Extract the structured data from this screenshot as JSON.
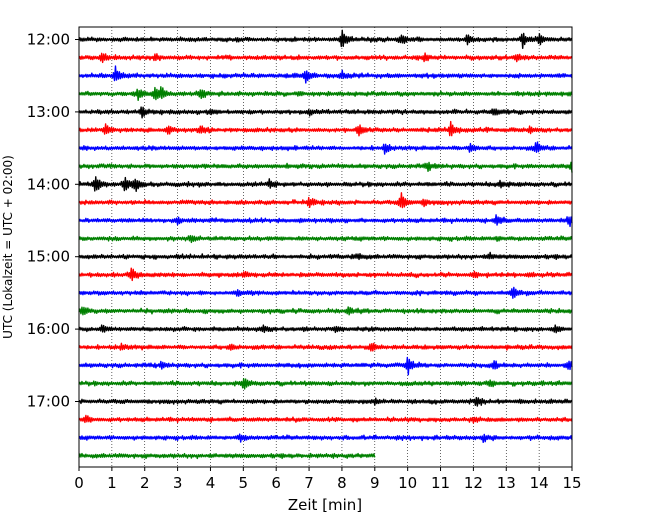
{
  "chart_data": {
    "type": "line",
    "xlabel": "Zeit  [min]",
    "ylabel": "UTC (Lokalzeit = UTC + 02:00)",
    "xlim": [
      0,
      15
    ],
    "x_ticks": [
      0,
      1,
      2,
      3,
      4,
      5,
      6,
      7,
      8,
      9,
      10,
      11,
      12,
      13,
      14,
      15
    ],
    "x_tick_labels": [
      "0",
      "1",
      "2",
      "3",
      "4",
      "5",
      "6",
      "7",
      "8",
      "9",
      "10",
      "11",
      "12",
      "13",
      "14",
      "15"
    ],
    "y_tick_labels": [
      "12:00",
      "13:00",
      "14:00",
      "15:00",
      "16:00",
      "17:00"
    ],
    "row_minutes": 15,
    "start_time": "12:00",
    "vertical_grid": "dotted",
    "trace_colors": [
      "#000000",
      "#ff0000",
      "#0000ff",
      "#008000"
    ],
    "traces": [
      {
        "start": "12:00",
        "duration_min": 15,
        "color": "black",
        "events": [
          [
            8.0,
            1.0
          ],
          [
            9.8,
            0.55
          ],
          [
            11.8,
            0.6
          ],
          [
            13.5,
            0.7
          ],
          [
            14.0,
            0.55
          ]
        ]
      },
      {
        "start": "12:15",
        "duration_min": 15,
        "color": "red",
        "events": [
          [
            0.7,
            0.65
          ],
          [
            2.3,
            0.35
          ],
          [
            10.5,
            0.4
          ],
          [
            13.3,
            0.45
          ]
        ]
      },
      {
        "start": "12:30",
        "duration_min": 15,
        "color": "blue",
        "events": [
          [
            1.1,
            1.0
          ],
          [
            6.9,
            0.8
          ],
          [
            8.0,
            0.4
          ]
        ]
      },
      {
        "start": "12:45",
        "duration_min": 15,
        "color": "green",
        "events": [
          [
            1.8,
            0.6
          ],
          [
            2.3,
            0.8
          ],
          [
            2.5,
            0.7
          ],
          [
            3.7,
            0.6
          ]
        ]
      },
      {
        "start": "13:00",
        "duration_min": 15,
        "color": "black",
        "events": [
          [
            1.9,
            0.6
          ],
          [
            4.0,
            0.3
          ],
          [
            7.0,
            0.3
          ],
          [
            12.6,
            0.35
          ]
        ]
      },
      {
        "start": "13:15",
        "duration_min": 15,
        "color": "red",
        "events": [
          [
            0.8,
            0.6
          ],
          [
            2.7,
            0.45
          ],
          [
            3.7,
            0.4
          ],
          [
            8.5,
            0.65
          ],
          [
            11.3,
            0.8
          ],
          [
            13.7,
            0.35
          ]
        ]
      },
      {
        "start": "13:30",
        "duration_min": 15,
        "color": "blue",
        "events": [
          [
            9.3,
            0.55
          ],
          [
            11.9,
            0.5
          ],
          [
            13.9,
            0.7
          ]
        ]
      },
      {
        "start": "13:45",
        "duration_min": 15,
        "color": "green",
        "events": [
          [
            10.6,
            0.45
          ],
          [
            15.0,
            0.8
          ]
        ]
      },
      {
        "start": "14:00",
        "duration_min": 15,
        "color": "black",
        "events": [
          [
            0.5,
            1.0
          ],
          [
            1.4,
            0.9
          ],
          [
            1.7,
            0.8
          ],
          [
            5.8,
            0.5
          ],
          [
            12.8,
            0.4
          ]
        ]
      },
      {
        "start": "14:15",
        "duration_min": 15,
        "color": "red",
        "events": [
          [
            7.0,
            0.55
          ],
          [
            9.8,
            1.0
          ],
          [
            10.5,
            0.4
          ]
        ]
      },
      {
        "start": "14:30",
        "duration_min": 15,
        "color": "blue",
        "events": [
          [
            3.0,
            0.35
          ],
          [
            12.7,
            0.65
          ],
          [
            14.9,
            0.55
          ]
        ]
      },
      {
        "start": "14:45",
        "duration_min": 15,
        "color": "green",
        "events": [
          [
            3.4,
            0.3
          ],
          [
            12.7,
            0.2
          ]
        ]
      },
      {
        "start": "15:00",
        "duration_min": 15,
        "color": "black",
        "events": [
          [
            8.5,
            0.3
          ],
          [
            12.5,
            0.3
          ]
        ]
      },
      {
        "start": "15:15",
        "duration_min": 15,
        "color": "red",
        "events": [
          [
            1.6,
            0.8
          ],
          [
            5.0,
            0.3
          ],
          [
            12.0,
            0.25
          ]
        ]
      },
      {
        "start": "15:30",
        "duration_min": 15,
        "color": "blue",
        "events": [
          [
            4.8,
            0.3
          ],
          [
            13.2,
            0.65
          ]
        ]
      },
      {
        "start": "15:45",
        "duration_min": 15,
        "color": "green",
        "events": [
          [
            0.1,
            0.45
          ],
          [
            8.2,
            0.35
          ]
        ]
      },
      {
        "start": "16:00",
        "duration_min": 15,
        "color": "black",
        "events": [
          [
            0.7,
            0.45
          ],
          [
            5.6,
            0.35
          ],
          [
            7.8,
            0.35
          ],
          [
            14.5,
            0.45
          ]
        ]
      },
      {
        "start": "16:15",
        "duration_min": 15,
        "color": "red",
        "events": [
          [
            1.3,
            0.35
          ],
          [
            4.6,
            0.35
          ],
          [
            8.9,
            0.55
          ]
        ]
      },
      {
        "start": "16:30",
        "duration_min": 15,
        "color": "blue",
        "events": [
          [
            2.5,
            0.3
          ],
          [
            10.0,
            0.9
          ],
          [
            12.6,
            0.5
          ],
          [
            14.9,
            0.5
          ]
        ]
      },
      {
        "start": "16:45",
        "duration_min": 15,
        "color": "green",
        "events": [
          [
            5.0,
            0.7
          ],
          [
            12.5,
            0.3
          ]
        ]
      },
      {
        "start": "17:00",
        "duration_min": 15,
        "color": "black",
        "events": [
          [
            9.0,
            0.3
          ],
          [
            12.1,
            0.5
          ]
        ]
      },
      {
        "start": "17:15",
        "duration_min": 15,
        "color": "red",
        "events": [
          [
            0.2,
            0.4
          ],
          [
            12.0,
            0.25
          ]
        ]
      },
      {
        "start": "17:30",
        "duration_min": 15,
        "color": "blue",
        "events": [
          [
            4.9,
            0.4
          ],
          [
            12.3,
            0.4
          ]
        ]
      },
      {
        "start": "17:45",
        "duration_min": 9,
        "color": "green",
        "events": []
      }
    ]
  }
}
